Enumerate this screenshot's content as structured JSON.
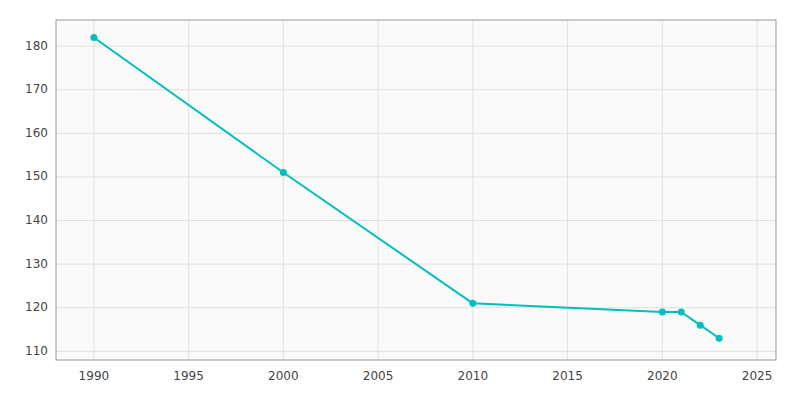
{
  "chart_data": {
    "type": "line",
    "x": [
      1990,
      2000,
      2010,
      2020,
      2021,
      2022,
      2023
    ],
    "values": [
      182,
      151,
      121,
      119,
      119,
      116,
      113
    ],
    "color": "#00BFBF",
    "marker": "circle",
    "xlim": [
      1988,
      2026
    ],
    "ylim": [
      108,
      186
    ],
    "xticks": [
      1990,
      1995,
      2000,
      2005,
      2010,
      2015,
      2020,
      2025
    ],
    "yticks": [
      110,
      120,
      130,
      140,
      150,
      160,
      170,
      180
    ],
    "grid": true
  }
}
